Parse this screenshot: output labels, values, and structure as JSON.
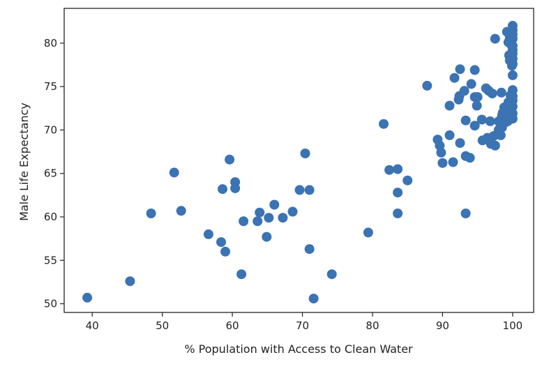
{
  "colors": {
    "marker": "#3b73b3",
    "axis": "#222222",
    "background": "#ffffff"
  },
  "chart_data": {
    "type": "scatter",
    "title": "",
    "xlabel": "% Population with Access to Clean Water",
    "ylabel": "Male Life Expectancy",
    "xlim": [
      36,
      103
    ],
    "ylim": [
      49,
      84
    ],
    "xticks": [
      40,
      50,
      60,
      70,
      80,
      90,
      100
    ],
    "yticks": [
      50,
      55,
      60,
      65,
      70,
      75,
      80
    ],
    "xtick_labels": [
      "40",
      "50",
      "60",
      "70",
      "80",
      "90",
      "100"
    ],
    "ytick_labels": [
      "50",
      "55",
      "60",
      "65",
      "70",
      "75",
      "80"
    ],
    "grid": false,
    "legend": "none",
    "points": [
      [
        39.3,
        50.7
      ],
      [
        45.4,
        52.6
      ],
      [
        48.4,
        60.4
      ],
      [
        51.7,
        65.1
      ],
      [
        52.7,
        60.7
      ],
      [
        56.6,
        58.0
      ],
      [
        58.4,
        57.1
      ],
      [
        58.6,
        63.2
      ],
      [
        59.0,
        56.0
      ],
      [
        59.6,
        66.6
      ],
      [
        60.4,
        64.0
      ],
      [
        60.4,
        63.3
      ],
      [
        61.3,
        53.4
      ],
      [
        61.6,
        59.5
      ],
      [
        63.6,
        59.5
      ],
      [
        63.9,
        60.5
      ],
      [
        64.9,
        57.7
      ],
      [
        65.2,
        59.9
      ],
      [
        66.0,
        61.4
      ],
      [
        67.2,
        59.9
      ],
      [
        68.6,
        60.6
      ],
      [
        69.6,
        63.1
      ],
      [
        70.4,
        67.3
      ],
      [
        71.0,
        63.1
      ],
      [
        71.0,
        56.3
      ],
      [
        71.6,
        50.6
      ],
      [
        74.2,
        53.4
      ],
      [
        79.4,
        58.2
      ],
      [
        81.6,
        70.7
      ],
      [
        82.4,
        65.4
      ],
      [
        83.6,
        65.5
      ],
      [
        83.6,
        62.8
      ],
      [
        83.6,
        60.4
      ],
      [
        85.0,
        64.2
      ],
      [
        87.8,
        75.1
      ],
      [
        89.3,
        68.9
      ],
      [
        89.6,
        68.2
      ],
      [
        89.8,
        67.4
      ],
      [
        90.0,
        66.2
      ],
      [
        91.0,
        72.8
      ],
      [
        91.0,
        69.4
      ],
      [
        91.5,
        66.3
      ],
      [
        91.7,
        76.0
      ],
      [
        92.3,
        73.5
      ],
      [
        92.4,
        73.9
      ],
      [
        92.5,
        77.0
      ],
      [
        92.5,
        68.5
      ],
      [
        93.1,
        74.5
      ],
      [
        93.3,
        71.1
      ],
      [
        93.3,
        67.0
      ],
      [
        93.3,
        60.4
      ],
      [
        93.9,
        66.8
      ],
      [
        94.1,
        75.3
      ],
      [
        94.6,
        76.9
      ],
      [
        94.6,
        73.8
      ],
      [
        94.6,
        70.5
      ],
      [
        94.9,
        72.8
      ],
      [
        95.0,
        73.8
      ],
      [
        95.6,
        71.2
      ],
      [
        95.7,
        68.8
      ],
      [
        96.2,
        74.8
      ],
      [
        96.4,
        69.1
      ],
      [
        96.6,
        74.5
      ],
      [
        96.8,
        71.0
      ],
      [
        96.9,
        68.4
      ],
      [
        97.1,
        74.2
      ],
      [
        97.3,
        69.3
      ],
      [
        97.5,
        80.5
      ],
      [
        97.5,
        68.2
      ],
      [
        97.8,
        69.5
      ],
      [
        98.0,
        71.0
      ],
      [
        98.0,
        70.0
      ],
      [
        98.3,
        69.4
      ],
      [
        98.4,
        74.3
      ],
      [
        98.5,
        71.7
      ],
      [
        98.5,
        70.3
      ],
      [
        98.6,
        72.0
      ],
      [
        98.7,
        70.8
      ],
      [
        98.8,
        72.6
      ],
      [
        98.9,
        71.2
      ],
      [
        99.0,
        70.9
      ],
      [
        99.1,
        72.4
      ],
      [
        99.2,
        81.3
      ],
      [
        99.2,
        71.8
      ],
      [
        99.3,
        71.0
      ],
      [
        99.4,
        80.1
      ],
      [
        99.4,
        73.2
      ],
      [
        99.5,
        78.6
      ],
      [
        99.5,
        72.8
      ],
      [
        99.6,
        80.7
      ],
      [
        99.6,
        78.0
      ],
      [
        99.6,
        71.9
      ],
      [
        99.7,
        74.0
      ],
      [
        99.7,
        72.3
      ],
      [
        99.8,
        81.3
      ],
      [
        99.8,
        79.8
      ],
      [
        99.8,
        71.7
      ],
      [
        99.9,
        77.4
      ],
      [
        99.9,
        72.9
      ],
      [
        100.0,
        82.0
      ],
      [
        100.0,
        81.5
      ],
      [
        100.0,
        81.0
      ],
      [
        100.0,
        80.5
      ],
      [
        100.0,
        79.7
      ],
      [
        100.0,
        79.2
      ],
      [
        100.0,
        78.8
      ],
      [
        100.0,
        78.2
      ],
      [
        100.0,
        77.6
      ],
      [
        100.0,
        76.3
      ],
      [
        100.0,
        74.6
      ],
      [
        100.0,
        73.9
      ],
      [
        100.0,
        73.4
      ],
      [
        100.0,
        72.7
      ],
      [
        100.0,
        71.9
      ],
      [
        100.0,
        71.3
      ]
    ]
  }
}
